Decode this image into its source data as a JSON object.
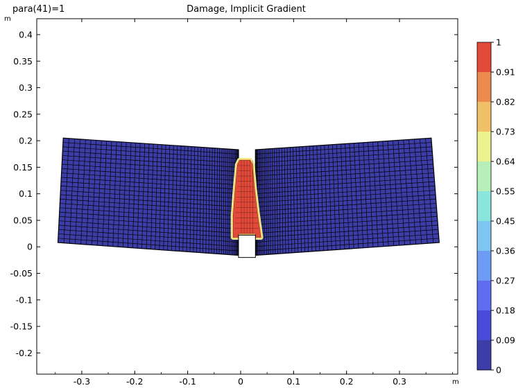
{
  "chart_data": {
    "type": "heatmap",
    "plot_type": "contour",
    "param_label": "para(41)=1",
    "title": "Damage, Implicit Gradient",
    "x_unit": "m",
    "y_unit": "m",
    "xlim": [
      -0.385,
      0.41
    ],
    "ylim": [
      -0.24,
      0.43
    ],
    "x_ticks": [
      -0.3,
      -0.2,
      -0.1,
      0,
      0.1,
      0.2,
      0.3
    ],
    "x_tick_labels": [
      "-0.3",
      "-0.2",
      "-0.1",
      "0",
      "0.1",
      "0.2",
      "0.3"
    ],
    "y_ticks": [
      -0.2,
      -0.15,
      -0.1,
      -0.05,
      0,
      0.05,
      0.1,
      0.15,
      0.2,
      0.25,
      0.3,
      0.35,
      0.4
    ],
    "y_tick_labels": [
      "-0.2",
      "-0.15",
      "-0.1",
      "-0.05",
      "0",
      "0.05",
      "0.1",
      "0.15",
      "0.2",
      "0.25",
      "0.3",
      "0.35",
      "0.4"
    ],
    "colorbar": {
      "min": 0,
      "max": 1,
      "tick_labels": [
        "1",
        "0.91",
        "0.82",
        "0.73",
        "0.64",
        "0.55",
        "0.45",
        "0.36",
        "0.27",
        "0.18",
        "0.09",
        "0"
      ],
      "colors": [
        "#3d3da8",
        "#4a4ad8",
        "#5f6ef0",
        "#6e9cf5",
        "#7ec6f2",
        "#8ae6dc",
        "#b6f0b8",
        "#ecf28e",
        "#f0c068",
        "#ec8a50",
        "#e34a3a"
      ]
    },
    "beam": {
      "left_block": {
        "outline": [
          [
            -0.345,
            0.008
          ],
          [
            -0.335,
            0.205
          ],
          [
            -0.004,
            0.183
          ],
          [
            -0.004,
            -0.016
          ]
        ]
      },
      "right_block": {
        "outline": [
          [
            0.028,
            -0.016
          ],
          [
            0.028,
            0.183
          ],
          [
            0.36,
            0.205
          ],
          [
            0.375,
            0.008
          ]
        ]
      },
      "notch": {
        "x": [
          -0.004,
          0.028
        ],
        "y_top": 0.022
      },
      "damage_region": {
        "level": 1,
        "outline": [
          [
            -0.014,
            0.018
          ],
          [
            -0.004,
            0.018
          ],
          [
            -0.004,
            0.025
          ],
          [
            0.028,
            0.025
          ],
          [
            0.028,
            0.018
          ],
          [
            0.038,
            0.018
          ],
          [
            0.032,
            0.06
          ],
          [
            0.026,
            0.11
          ],
          [
            0.022,
            0.155
          ],
          [
            0.018,
            0.163
          ],
          [
            -0.002,
            0.163
          ],
          [
            -0.006,
            0.155
          ],
          [
            -0.01,
            0.11
          ],
          [
            -0.014,
            0.06
          ]
        ]
      },
      "background_level": 0
    }
  }
}
